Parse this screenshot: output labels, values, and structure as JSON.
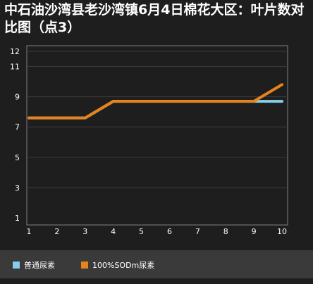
{
  "chart_data": {
    "type": "line",
    "title": "中石油沙湾县老沙湾镇6月4日棉花大区：叶片数对比图（点3）",
    "xlabel": "",
    "ylabel": "",
    "x": [
      1,
      2,
      3,
      4,
      5,
      6,
      7,
      8,
      9,
      10
    ],
    "xlim": [
      1,
      10
    ],
    "ylim": [
      1,
      12
    ],
    "y_ticks": [
      1,
      3,
      5,
      7,
      9,
      11,
      12
    ],
    "grid": "horizontal",
    "legend_position": "bottom-left",
    "series": [
      {
        "name": "普通尿素",
        "color": "#87ceeb",
        "values": [
          7.6,
          7.6,
          7.6,
          8.7,
          8.7,
          8.7,
          8.7,
          8.7,
          8.7,
          8.7
        ]
      },
      {
        "name": "100%SODm尿素",
        "color": "#e8821a",
        "values": [
          7.6,
          7.6,
          7.6,
          8.7,
          8.7,
          8.7,
          8.7,
          8.7,
          8.7,
          9.8
        ]
      }
    ]
  }
}
